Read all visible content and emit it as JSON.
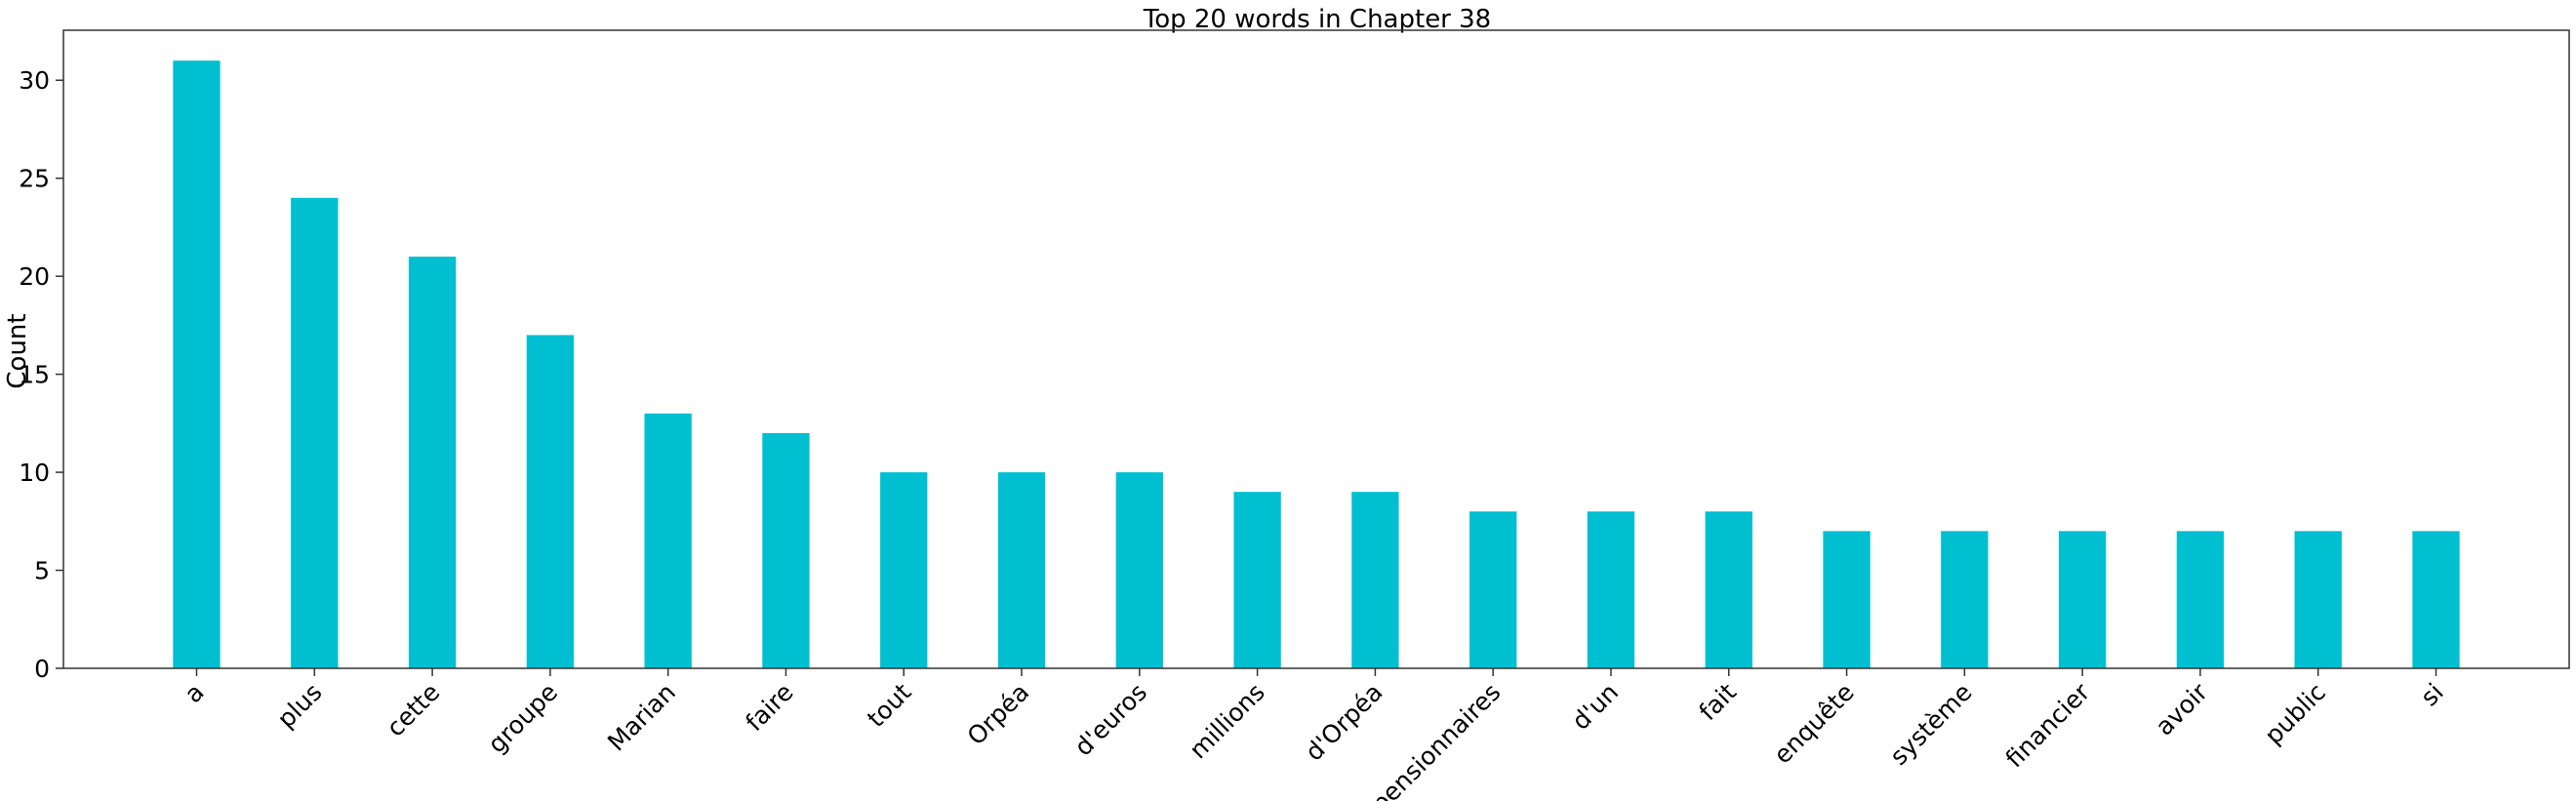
{
  "chart_data": {
    "type": "bar",
    "title": "Top 20 words in Chapter 38",
    "xlabel": "",
    "ylabel": "Count",
    "categories": [
      "a",
      "plus",
      "cette",
      "groupe",
      "Marian",
      "faire",
      "tout",
      "Orpéa",
      "d'euros",
      "millions",
      "d'Orpéa",
      "pensionnaires",
      "d'un",
      "fait",
      "enquête",
      "système",
      "financier",
      "avoir",
      "public",
      "si"
    ],
    "values": [
      31,
      24,
      21,
      17,
      13,
      12,
      10,
      10,
      10,
      9,
      9,
      8,
      8,
      8,
      7,
      7,
      7,
      7,
      7,
      7
    ],
    "ylim": [
      0,
      32.55
    ],
    "yticks": [
      0,
      5,
      10,
      15,
      20,
      25,
      30
    ],
    "grid": false,
    "bar_color": "#00bfd0",
    "axis_color": "#333333"
  }
}
